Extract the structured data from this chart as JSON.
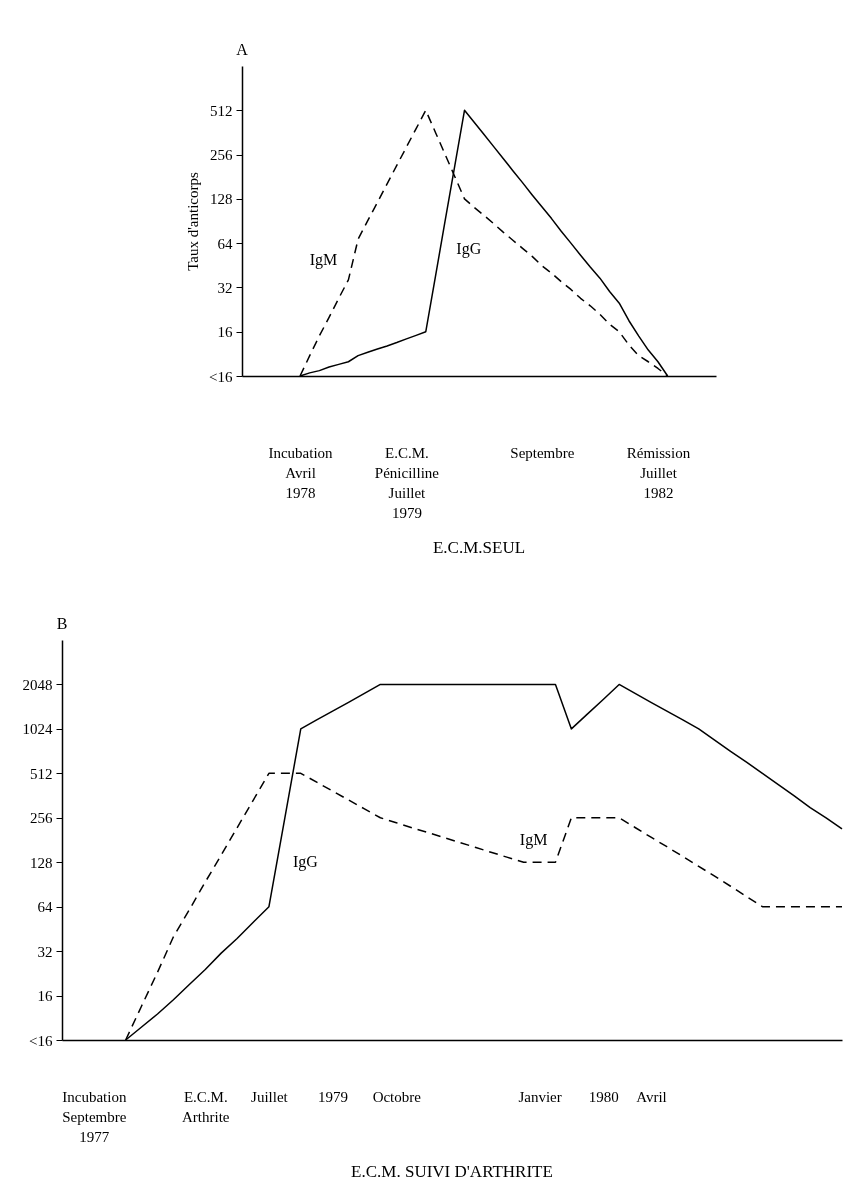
{
  "chart_data": [
    {
      "type": "line",
      "title": "E.C.M.SEUL",
      "ylabel": "Taux d'anticorps",
      "annotations": [
        "A"
      ],
      "categories": [
        null,
        null,
        null,
        null,
        null,
        null,
        "Incubation\nAvril\n1978",
        null,
        null,
        null,
        null,
        null,
        null,
        null,
        null,
        null,
        null,
        "E.C.M.\nPénicilline\nJuillet\n1979",
        null,
        null,
        null,
        null,
        null,
        null,
        null,
        null,
        null,
        null,
        null,
        null,
        null,
        "Septembre",
        null,
        null,
        null,
        null,
        null,
        null,
        null,
        null,
        null,
        null,
        null,
        "Rémission\nJuillet\n1982",
        null,
        null,
        null,
        null,
        null,
        null
      ],
      "ylim": [
        8,
        1024
      ],
      "yticks": [
        {
          "value": 8,
          "label": "<16"
        },
        16,
        32,
        64,
        128,
        256,
        512
      ],
      "log": "y",
      "series": [
        {
          "name": "IgM",
          "color": "#000000",
          "line_style": "dashed",
          "values": [
            null,
            null,
            null,
            null,
            null,
            null,
            8,
            11,
            15,
            20,
            27,
            36,
            68,
            91,
            121,
            162,
            216,
            288,
            384,
            512,
            362,
            256,
            181,
            128,
            112,
            99,
            87,
            76,
            67,
            59,
            52,
            45,
            40,
            35,
            31,
            27,
            24,
            21,
            18,
            16,
            13,
            11,
            10,
            9,
            8,
            null,
            null,
            null,
            null,
            null
          ]
        },
        {
          "name": "IgG",
          "color": "#000000",
          "line_style": "solid",
          "values": [
            null,
            null,
            null,
            null,
            null,
            null,
            8,
            8.4,
            8.7,
            9.2,
            9.6,
            10,
            11,
            11.6,
            12.2,
            12.8,
            13.5,
            14.3,
            15.1,
            16,
            38,
            91,
            215,
            512,
            424,
            352,
            291,
            241,
            199,
            165,
            136,
            113,
            94,
            77,
            64,
            53,
            44,
            37,
            30,
            25,
            19,
            15,
            12,
            10,
            8,
            null,
            null,
            null,
            null,
            null
          ]
        }
      ]
    },
    {
      "type": "line",
      "title": "E.C.M. SUIVI D'ARTHRITE",
      "annotations": [
        "B"
      ],
      "categories": [
        null,
        null,
        "Incubation\nSeptembre\n1977",
        null,
        null,
        null,
        null,
        null,
        null,
        "E.C.M.\nArthrite",
        null,
        null,
        null,
        "Juillet",
        null,
        null,
        null,
        "1979",
        null,
        null,
        null,
        "Octobre",
        null,
        null,
        null,
        null,
        null,
        null,
        null,
        null,
        "Janvier",
        null,
        null,
        null,
        "1980",
        null,
        null,
        "Avril",
        null,
        null,
        null,
        null,
        null,
        null,
        null,
        null,
        null,
        null,
        null,
        null
      ],
      "ylim": [
        8,
        4096
      ],
      "yticks": [
        {
          "value": 8,
          "label": "<16"
        },
        16,
        32,
        64,
        128,
        256,
        512,
        1024,
        2048
      ],
      "log": "y",
      "series": [
        {
          "name": "IgM",
          "color": "#000000",
          "line_style": "dashed",
          "values": [
            null,
            null,
            null,
            null,
            8,
            13.6,
            23,
            40,
            61,
            94,
            143,
            219,
            335,
            512,
            512,
            512,
            446,
            388,
            338,
            294,
            256,
            237,
            219,
            203,
            188,
            174,
            161,
            149,
            138,
            128,
            128,
            128,
            256,
            256,
            256,
            256,
            220,
            189,
            163,
            140,
            120,
            103,
            88,
            75,
            64,
            64,
            64,
            64,
            64,
            64
          ]
        },
        {
          "name": "IgG",
          "color": "#000000",
          "line_style": "solid",
          "values": [
            null,
            null,
            null,
            null,
            8,
            9.8,
            12,
            15,
            19,
            24,
            31,
            39,
            50,
            64,
            256,
            1024,
            1180,
            1350,
            1550,
            1780,
            2048,
            2048,
            2048,
            2048,
            2048,
            2048,
            2048,
            2048,
            2048,
            2048,
            2048,
            2048,
            1024,
            1290,
            1620,
            2048,
            1780,
            1550,
            1350,
            1180,
            1024,
            860,
            720,
            610,
            512,
            430,
            360,
            300,
            256,
            215
          ]
        }
      ]
    }
  ]
}
